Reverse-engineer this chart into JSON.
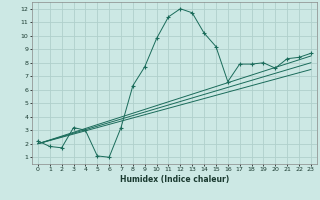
{
  "title": "",
  "xlabel": "Humidex (Indice chaleur)",
  "bg_color": "#cce8e4",
  "grid_color": "#b0d0cc",
  "line_color": "#1a6b5a",
  "xlim": [
    -0.5,
    23.5
  ],
  "ylim": [
    0.5,
    12.5
  ],
  "xticks": [
    0,
    1,
    2,
    3,
    4,
    5,
    6,
    7,
    8,
    9,
    10,
    11,
    12,
    13,
    14,
    15,
    16,
    17,
    18,
    19,
    20,
    21,
    22,
    23
  ],
  "yticks": [
    1,
    2,
    3,
    4,
    5,
    6,
    7,
    8,
    9,
    10,
    11,
    12
  ],
  "curves": [
    {
      "x": [
        0,
        1,
        2,
        3,
        4,
        5,
        6,
        7,
        8,
        9,
        10,
        11,
        12,
        13,
        14,
        15,
        16,
        17,
        18,
        19,
        20,
        21,
        22,
        23
      ],
      "y": [
        2.2,
        1.8,
        1.7,
        3.2,
        3.0,
        1.1,
        1.0,
        3.2,
        6.3,
        7.7,
        9.8,
        11.4,
        12.0,
        11.7,
        10.2,
        9.2,
        6.6,
        7.9,
        7.9,
        8.0,
        7.6,
        8.3,
        8.4,
        8.7
      ],
      "marker": "+"
    },
    {
      "x": [
        0,
        23
      ],
      "y": [
        2.0,
        8.5
      ],
      "marker": null
    },
    {
      "x": [
        0,
        23
      ],
      "y": [
        2.0,
        8.0
      ],
      "marker": null
    },
    {
      "x": [
        0,
        23
      ],
      "y": [
        2.0,
        7.5
      ],
      "marker": null
    }
  ]
}
